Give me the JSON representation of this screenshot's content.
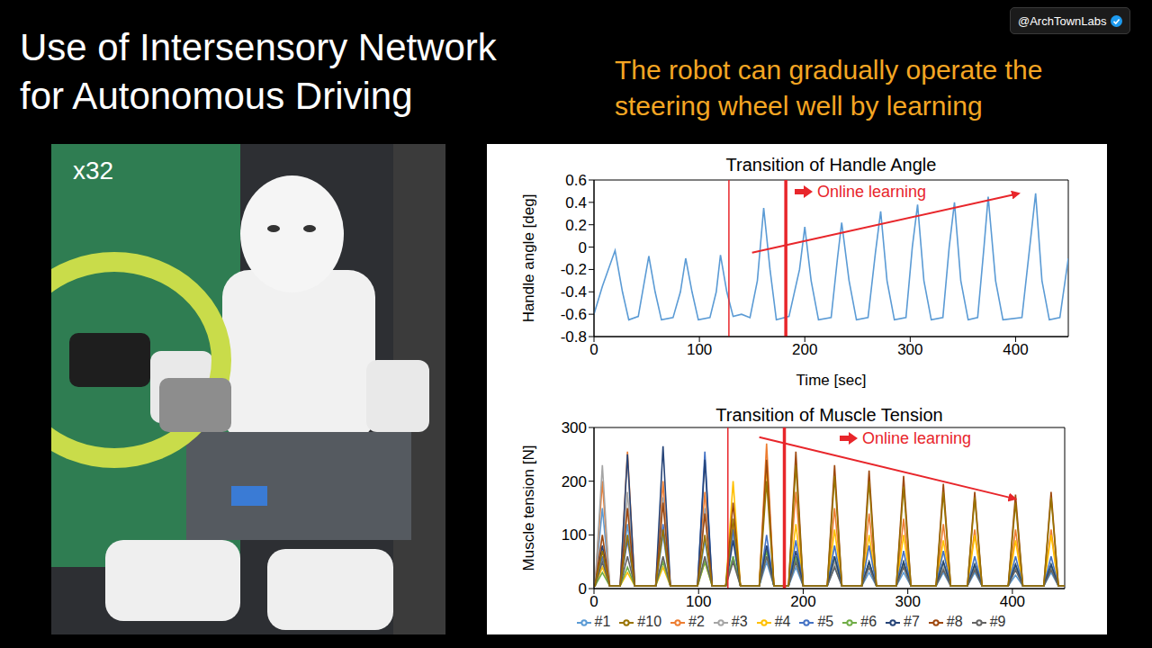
{
  "slide": {
    "title": "Use of Intersensory Network for Autonomous Driving",
    "subtitle": "The robot can gradually operate the steering wheel well by learning",
    "watermark": "@ArchTownLabs",
    "photo_label": "x32"
  },
  "chart_data": [
    {
      "type": "line",
      "title": "Transition of Handle Angle",
      "xlabel": "Time [sec]",
      "ylabel": "Handle angle [deg]",
      "x": [
        0,
        8,
        20,
        27,
        33,
        42,
        47,
        52,
        58,
        64,
        75,
        82,
        87,
        93,
        99,
        110,
        116,
        120,
        126,
        132,
        140,
        148,
        155,
        161,
        167,
        173,
        185,
        195,
        200,
        206,
        213,
        225,
        231,
        235,
        242,
        249,
        260,
        267,
        272,
        278,
        285,
        296,
        302,
        307,
        313,
        320,
        331,
        337,
        342,
        348,
        355,
        364,
        370,
        374,
        381,
        388,
        406,
        414,
        419,
        425,
        432,
        442,
        450
      ],
      "series": [
        {
          "name": "Handle angle",
          "color": "#5b9bd5",
          "values": [
            -0.6,
            -0.35,
            -0.03,
            -0.4,
            -0.65,
            -0.62,
            -0.35,
            -0.08,
            -0.4,
            -0.65,
            -0.63,
            -0.4,
            -0.1,
            -0.4,
            -0.65,
            -0.63,
            -0.4,
            -0.07,
            -0.4,
            -0.62,
            -0.6,
            -0.63,
            -0.3,
            0.35,
            -0.2,
            -0.65,
            -0.62,
            -0.2,
            0.18,
            -0.3,
            -0.65,
            -0.63,
            -0.1,
            0.22,
            -0.3,
            -0.65,
            -0.63,
            -0.05,
            0.32,
            -0.3,
            -0.65,
            -0.63,
            0,
            0.38,
            -0.3,
            -0.65,
            -0.63,
            0,
            0.4,
            -0.3,
            -0.65,
            -0.63,
            0,
            0.45,
            -0.3,
            -0.65,
            -0.63,
            0.05,
            0.48,
            -0.3,
            -0.65,
            -0.63,
            -0.1
          ]
        }
      ],
      "xlim": [
        0,
        450
      ],
      "xticks": [
        0,
        100,
        200,
        300,
        400
      ],
      "ylim": [
        -0.8,
        0.6
      ],
      "yticks": [
        -0.8,
        -0.6,
        -0.4,
        -0.2,
        0,
        0.2,
        0.4,
        0.6
      ],
      "grid": false,
      "annotations": [
        {
          "text": "Online learning",
          "color": "#e8262b"
        }
      ],
      "marker_lines": [
        128,
        182
      ],
      "trend_arrow": {
        "from": {
          "x": 150,
          "y": -0.05
        },
        "to": {
          "x": 403,
          "y": 0.48
        }
      }
    },
    {
      "type": "line",
      "title": "Transition of Muscle Tension",
      "ylabel": "Muscle tension [N]",
      "x": [
        0,
        1,
        8,
        15,
        25,
        32,
        39,
        59,
        66,
        73,
        99,
        106,
        113,
        126,
        133,
        140,
        158,
        165,
        172,
        186,
        193,
        200,
        223,
        230,
        237,
        256,
        263,
        270,
        289,
        296,
        303,
        327,
        334,
        341,
        357,
        364,
        371,
        396,
        403,
        410,
        430,
        437,
        444,
        450
      ],
      "series": [
        {
          "name": "#1",
          "color": "#5b9bd5",
          "values": [
            5,
            5,
            150,
            5,
            5,
            120,
            5,
            5,
            100,
            5,
            5,
            90,
            5,
            5,
            60,
            5,
            5,
            50,
            5,
            5,
            40,
            5,
            5,
            40,
            5,
            5,
            30,
            5,
            5,
            30,
            5,
            5,
            30,
            5,
            5,
            30,
            5,
            5,
            25,
            5,
            5,
            30,
            5,
            5
          ]
        },
        {
          "name": "#2",
          "color": "#ed7d31",
          "values": [
            5,
            5,
            200,
            5,
            5,
            255,
            5,
            5,
            200,
            5,
            5,
            180,
            5,
            5,
            120,
            5,
            5,
            270,
            5,
            5,
            180,
            5,
            5,
            150,
            5,
            5,
            140,
            5,
            5,
            130,
            5,
            5,
            120,
            5,
            5,
            110,
            5,
            5,
            110,
            5,
            5,
            110,
            5,
            5
          ]
        },
        {
          "name": "#3",
          "color": "#a5a5a5",
          "values": [
            5,
            5,
            230,
            5,
            5,
            180,
            5,
            5,
            170,
            5,
            5,
            150,
            5,
            5,
            100,
            5,
            5,
            80,
            5,
            5,
            60,
            5,
            5,
            50,
            5,
            5,
            50,
            5,
            5,
            45,
            5,
            5,
            40,
            5,
            5,
            40,
            5,
            5,
            40,
            5,
            5,
            40,
            5,
            5
          ]
        },
        {
          "name": "#4",
          "color": "#ffc000",
          "values": [
            5,
            5,
            40,
            5,
            5,
            30,
            5,
            5,
            40,
            5,
            5,
            50,
            5,
            5,
            200,
            5,
            5,
            230,
            5,
            5,
            120,
            5,
            5,
            110,
            5,
            5,
            100,
            5,
            5,
            100,
            5,
            5,
            90,
            5,
            5,
            100,
            5,
            5,
            90,
            5,
            5,
            100,
            5,
            5
          ]
        },
        {
          "name": "#5",
          "color": "#4472c4",
          "values": [
            5,
            5,
            60,
            5,
            5,
            90,
            5,
            5,
            120,
            5,
            5,
            255,
            5,
            5,
            110,
            5,
            5,
            100,
            5,
            5,
            90,
            5,
            5,
            80,
            5,
            5,
            80,
            5,
            5,
            70,
            5,
            5,
            70,
            5,
            5,
            60,
            5,
            5,
            60,
            5,
            5,
            60,
            5,
            5
          ]
        },
        {
          "name": "#6",
          "color": "#70ad47",
          "values": [
            5,
            5,
            30,
            5,
            5,
            40,
            5,
            5,
            50,
            5,
            5,
            50,
            5,
            5,
            60,
            5,
            5,
            70,
            5,
            5,
            60,
            5,
            5,
            60,
            5,
            5,
            50,
            5,
            5,
            50,
            5,
            5,
            50,
            5,
            5,
            45,
            5,
            5,
            45,
            5,
            5,
            45,
            5,
            5
          ]
        },
        {
          "name": "#7",
          "color": "#264478",
          "values": [
            5,
            5,
            80,
            5,
            5,
            250,
            5,
            5,
            265,
            5,
            5,
            240,
            5,
            5,
            90,
            5,
            5,
            80,
            5,
            5,
            70,
            5,
            5,
            60,
            5,
            5,
            50,
            5,
            5,
            50,
            5,
            5,
            50,
            5,
            5,
            45,
            5,
            5,
            45,
            5,
            5,
            45,
            5,
            5
          ]
        },
        {
          "name": "#8",
          "color": "#9e480e",
          "values": [
            5,
            5,
            100,
            5,
            5,
            150,
            5,
            5,
            160,
            5,
            5,
            140,
            5,
            5,
            160,
            5,
            5,
            240,
            5,
            5,
            255,
            5,
            5,
            230,
            5,
            5,
            220,
            5,
            5,
            210,
            5,
            5,
            195,
            5,
            5,
            180,
            5,
            5,
            175,
            5,
            5,
            180,
            5,
            5
          ]
        },
        {
          "name": "#9",
          "color": "#636363",
          "values": [
            5,
            5,
            50,
            5,
            5,
            60,
            5,
            5,
            60,
            5,
            5,
            60,
            5,
            5,
            50,
            5,
            5,
            60,
            5,
            5,
            50,
            5,
            5,
            40,
            5,
            5,
            40,
            5,
            5,
            40,
            5,
            5,
            35,
            5,
            5,
            35,
            5,
            5,
            35,
            5,
            5,
            35,
            5,
            5
          ]
        },
        {
          "name": "#10",
          "color": "#997300",
          "values": [
            5,
            5,
            70,
            5,
            5,
            100,
            5,
            5,
            110,
            5,
            5,
            100,
            5,
            5,
            130,
            5,
            5,
            200,
            5,
            5,
            230,
            5,
            5,
            210,
            5,
            5,
            200,
            5,
            5,
            190,
            5,
            5,
            180,
            5,
            5,
            170,
            5,
            5,
            160,
            5,
            5,
            170,
            5,
            5
          ]
        }
      ],
      "xlim": [
        0,
        450
      ],
      "xticks": [
        0,
        100,
        200,
        300,
        400
      ],
      "ylim": [
        0,
        300
      ],
      "yticks": [
        0,
        100,
        200,
        300
      ],
      "grid": false,
      "legend": "bottom",
      "annotations": [
        {
          "text": "Online learning",
          "color": "#e8262b"
        }
      ],
      "marker_lines": [
        128,
        182
      ],
      "trend_arrow": {
        "from": {
          "x": 158,
          "y": 282
        },
        "to": {
          "x": 403,
          "y": 167
        }
      }
    }
  ]
}
